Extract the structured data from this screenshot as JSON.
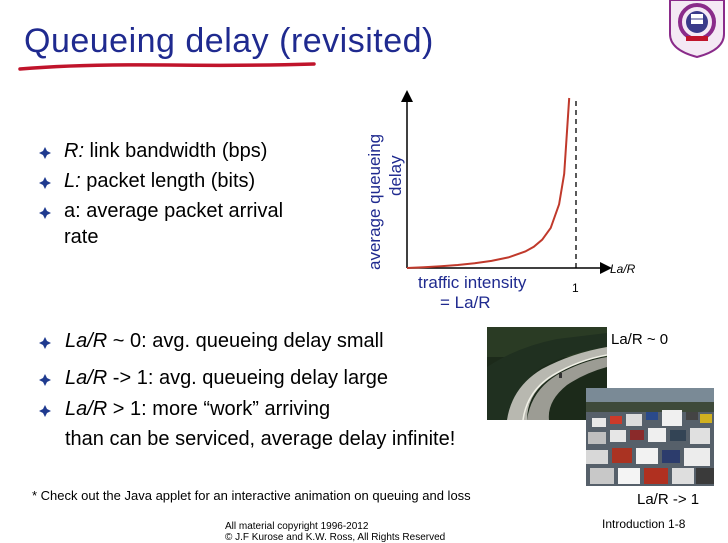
{
  "slide": {
    "title": "Queueing delay (revisited)",
    "footnote": "* Check out the Java applet for an interactive animation on queuing and loss",
    "copyright_line1": "All material copyright 1996-2012",
    "copyright_line2": "© J.F Kurose and K.W. Ross, All Rights Reserved",
    "slide_number": "Introduction 1-8"
  },
  "definitions": [
    {
      "term": "R:",
      "desc": " link bandwidth (bps)"
    },
    {
      "term": "L:",
      "desc": " packet length (bits)"
    },
    {
      "term": "a:",
      "desc": " average packet arrival"
    },
    {
      "term": "",
      "desc": "rate"
    }
  ],
  "cases": [
    {
      "term": "La/R",
      "desc": " ~ 0: avg. queueing delay small"
    },
    {
      "term": "La/R",
      "desc": " -> 1: avg. queueing delay large"
    },
    {
      "term": "La/R",
      "desc": " > 1: more “work” arriving"
    },
    {
      "term": "",
      "desc": "than can be serviced, average delay infinite!"
    }
  ],
  "photos": {
    "caption_light": "La/R ~ 0",
    "caption_heavy": "La/R -> 1"
  },
  "chart_data": {
    "type": "line",
    "ylabel_line1": "average queueing",
    "ylabel_line2": "delay",
    "xlabel_line1": "traffic intensity",
    "xlabel_line2": "= La/R",
    "axis_end_label": "La/R",
    "tick_label": "1",
    "x": [
      0.0,
      0.1,
      0.2,
      0.3,
      0.4,
      0.5,
      0.6,
      0.7,
      0.75,
      0.8,
      0.85,
      0.9,
      0.93,
      0.96
    ],
    "y": [
      0.0,
      0.111,
      0.25,
      0.429,
      0.667,
      1.0,
      1.5,
      2.333,
      3.0,
      4.0,
      5.667,
      9.0,
      13.3,
      24.0
    ],
    "xlim": [
      0,
      1.15
    ],
    "ylim": [
      0,
      24
    ],
    "asymptote_x": 1,
    "colors": {
      "curve": "#c0392b",
      "axes": "#000000",
      "labels": "#1f2a8f",
      "asymptote": "#000000"
    }
  },
  "colors": {
    "title": "#1f2a8f",
    "underline": "#c0142b",
    "bullet": "#1f3a8f"
  }
}
